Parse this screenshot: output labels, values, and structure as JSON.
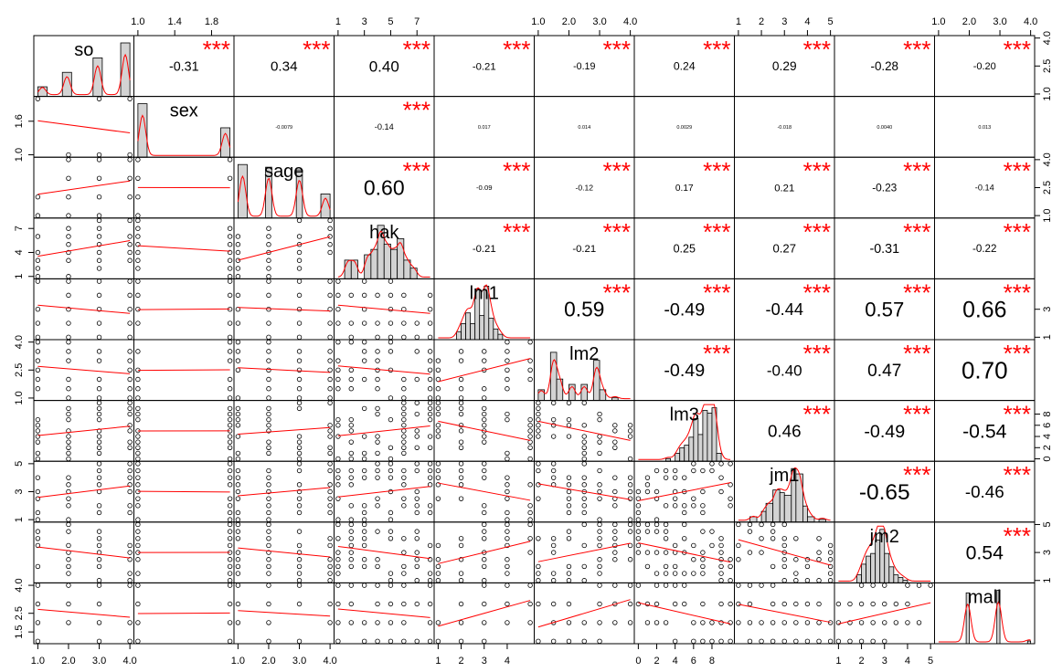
{
  "chart_data": {
    "type": "scatter",
    "variables": [
      "so",
      "sex",
      "sage",
      "hak",
      "lm1",
      "lm2",
      "lm3",
      "jm1",
      "jm2",
      "mall"
    ],
    "ranges": [
      [
        1,
        4
      ],
      [
        1,
        2
      ],
      [
        1,
        4
      ],
      [
        1,
        8
      ],
      [
        1,
        5
      ],
      [
        1,
        4
      ],
      [
        0,
        10
      ],
      [
        1,
        5
      ],
      [
        1,
        5
      ],
      [
        1,
        4
      ]
    ],
    "axis_ticks": {
      "top": [
        [
          1.0,
          1.4,
          1.8
        ],
        [
          1,
          3,
          5,
          7
        ],
        [
          1.0,
          2.0,
          3.0,
          4.0
        ],
        [
          1,
          2,
          3,
          4,
          5
        ],
        [
          1.0,
          2.0,
          3.0,
          4.0
        ]
      ],
      "top_labels": [
        [
          "1.0",
          "1.4",
          "1.8"
        ],
        [
          "1",
          "3",
          "5",
          "7"
        ],
        [
          "1.0",
          "2.0",
          "3.0",
          "4.0"
        ],
        [
          "1",
          "2",
          "3",
          "4",
          "5"
        ],
        [
          "1.0",
          "2.0",
          "3.0",
          "4.0"
        ]
      ],
      "bottom": [
        [
          1.0,
          2.0,
          3.0,
          4.0
        ],
        [
          1.0,
          2.0,
          3.0,
          4.0
        ],
        [
          1,
          2,
          3,
          4
        ],
        [
          0,
          2,
          4,
          6,
          8
        ],
        [
          1,
          2,
          3,
          4,
          5
        ]
      ],
      "bottom_labels": [
        [
          "1.0",
          "2.0",
          "3.0",
          "4.0"
        ],
        [
          "1.0",
          "2.0",
          "3.0",
          "4.0"
        ],
        [
          "1",
          "2",
          "3",
          "4"
        ],
        [
          "0",
          "2",
          "4",
          "6",
          "8"
        ],
        [
          "1",
          "2",
          "3",
          "4",
          "5"
        ]
      ],
      "left": [
        [
          1.6,
          1.0
        ],
        [
          7,
          4,
          1
        ],
        [
          4.0,
          2.5,
          1.0
        ],
        [
          5,
          3,
          1
        ],
        [
          4.0,
          2.5,
          1.5
        ]
      ],
      "left_labels": [
        [
          "1.6",
          "1.0"
        ],
        [
          "7",
          "4",
          "1"
        ],
        [
          "4.0",
          "2.5",
          "1.0"
        ],
        [
          "5",
          "3",
          "1"
        ],
        [
          "4.0",
          "2.5",
          "1.5"
        ]
      ],
      "right": [
        [
          4.0,
          2.5,
          1.0
        ],
        [
          4.0,
          2.5,
          1.0
        ],
        [
          3,
          1
        ],
        [
          8,
          6,
          4,
          2,
          0
        ],
        [
          5,
          3,
          1
        ]
      ],
      "right_labels": [
        [
          "4.0",
          "2.5",
          "1.0"
        ],
        [
          "4.0",
          "2.5",
          "1.0"
        ],
        [
          "3",
          "1"
        ],
        [
          "8",
          "6",
          "4",
          "2",
          "0"
        ],
        [
          "5",
          "3",
          "1"
        ]
      ]
    },
    "correlations": [
      {
        "r": 0,
        "c": 1,
        "text": "-0.31",
        "stars": "***"
      },
      {
        "r": 0,
        "c": 2,
        "text": "0.34",
        "stars": "***"
      },
      {
        "r": 0,
        "c": 3,
        "text": "0.40",
        "stars": "***"
      },
      {
        "r": 0,
        "c": 4,
        "text": "-0.21",
        "stars": "***"
      },
      {
        "r": 0,
        "c": 5,
        "text": "-0.19",
        "stars": "***"
      },
      {
        "r": 0,
        "c": 6,
        "text": "0.24",
        "stars": "***"
      },
      {
        "r": 0,
        "c": 7,
        "text": "0.29",
        "stars": "***"
      },
      {
        "r": 0,
        "c": 8,
        "text": "-0.28",
        "stars": "***"
      },
      {
        "r": 0,
        "c": 9,
        "text": "-0.20",
        "stars": "***"
      },
      {
        "r": 1,
        "c": 2,
        "text": "-0.0079",
        "stars": ""
      },
      {
        "r": 1,
        "c": 3,
        "text": "-0.14",
        "stars": "***"
      },
      {
        "r": 1,
        "c": 4,
        "text": "0.017",
        "stars": ""
      },
      {
        "r": 1,
        "c": 5,
        "text": "0.014",
        "stars": ""
      },
      {
        "r": 1,
        "c": 6,
        "text": "0.0029",
        "stars": ""
      },
      {
        "r": 1,
        "c": 7,
        "text": "-0.018",
        "stars": ""
      },
      {
        "r": 1,
        "c": 8,
        "text": "0.0040",
        "stars": ""
      },
      {
        "r": 1,
        "c": 9,
        "text": "0.013",
        "stars": ""
      },
      {
        "r": 2,
        "c": 3,
        "text": "0.60",
        "stars": "***"
      },
      {
        "r": 2,
        "c": 4,
        "text": "-0.09",
        "stars": "***"
      },
      {
        "r": 2,
        "c": 5,
        "text": "-0.12",
        "stars": "***"
      },
      {
        "r": 2,
        "c": 6,
        "text": "0.17",
        "stars": "***"
      },
      {
        "r": 2,
        "c": 7,
        "text": "0.21",
        "stars": "***"
      },
      {
        "r": 2,
        "c": 8,
        "text": "-0.23",
        "stars": "***"
      },
      {
        "r": 2,
        "c": 9,
        "text": "-0.14",
        "stars": "***"
      },
      {
        "r": 3,
        "c": 4,
        "text": "-0.21",
        "stars": "***"
      },
      {
        "r": 3,
        "c": 5,
        "text": "-0.21",
        "stars": "***"
      },
      {
        "r": 3,
        "c": 6,
        "text": "0.25",
        "stars": "***"
      },
      {
        "r": 3,
        "c": 7,
        "text": "0.27",
        "stars": "***"
      },
      {
        "r": 3,
        "c": 8,
        "text": "-0.31",
        "stars": "***"
      },
      {
        "r": 3,
        "c": 9,
        "text": "-0.22",
        "stars": "***"
      },
      {
        "r": 4,
        "c": 5,
        "text": "0.59",
        "stars": "***"
      },
      {
        "r": 4,
        "c": 6,
        "text": "-0.49",
        "stars": "***"
      },
      {
        "r": 4,
        "c": 7,
        "text": "-0.44",
        "stars": "***"
      },
      {
        "r": 4,
        "c": 8,
        "text": "0.57",
        "stars": "***"
      },
      {
        "r": 4,
        "c": 9,
        "text": "0.66",
        "stars": "***"
      },
      {
        "r": 5,
        "c": 6,
        "text": "-0.49",
        "stars": "***"
      },
      {
        "r": 5,
        "c": 7,
        "text": "-0.40",
        "stars": "***"
      },
      {
        "r": 5,
        "c": 8,
        "text": "0.47",
        "stars": "***"
      },
      {
        "r": 5,
        "c": 9,
        "text": "0.70",
        "stars": "***"
      },
      {
        "r": 6,
        "c": 7,
        "text": "0.46",
        "stars": "***"
      },
      {
        "r": 6,
        "c": 8,
        "text": "-0.49",
        "stars": "***"
      },
      {
        "r": 6,
        "c": 9,
        "text": "-0.54",
        "stars": "***"
      },
      {
        "r": 7,
        "c": 8,
        "text": "-0.65",
        "stars": "***"
      },
      {
        "r": 7,
        "c": 9,
        "text": "-0.46",
        "stars": "***"
      },
      {
        "r": 8,
        "c": 9,
        "text": "0.54",
        "stars": "***"
      }
    ],
    "histograms": [
      {
        "var": "so",
        "bins": [
          [
            1,
            1.3,
            0.18
          ],
          [
            1.8,
            2.1,
            0.45
          ],
          [
            2.8,
            3.1,
            0.72
          ],
          [
            3.7,
            4,
            1.0
          ]
        ]
      },
      {
        "var": "sex",
        "bins": [
          [
            1,
            1.1,
            1.0
          ],
          [
            1.9,
            2,
            0.55
          ]
        ]
      },
      {
        "var": "sage",
        "bins": [
          [
            1,
            1.3,
            1.0
          ],
          [
            1.9,
            2.1,
            0.95
          ],
          [
            2.9,
            3.1,
            0.9
          ],
          [
            3.7,
            4,
            0.45
          ]
        ]
      },
      {
        "var": "hak",
        "bins": [
          [
            1.5,
            2,
            0.35
          ],
          [
            2,
            2.5,
            0.35
          ],
          [
            3,
            3.5,
            0.45
          ],
          [
            3.5,
            4,
            0.55
          ],
          [
            4,
            4.5,
            1.0
          ],
          [
            4.5,
            5,
            0.65
          ],
          [
            5,
            5.5,
            0.55
          ],
          [
            5.5,
            6,
            0.75
          ],
          [
            6,
            6.5,
            0.35
          ],
          [
            6.5,
            7,
            0.2
          ]
        ]
      },
      {
        "var": "lm1",
        "bins": [
          [
            1.8,
            2,
            0.15
          ],
          [
            2,
            2.2,
            0.3
          ],
          [
            2.2,
            2.4,
            0.5
          ],
          [
            2.4,
            2.6,
            0.3
          ],
          [
            2.6,
            2.8,
            0.95
          ],
          [
            2.8,
            3,
            0.45
          ],
          [
            3,
            3.2,
            1.0
          ],
          [
            3.2,
            3.4,
            0.4
          ],
          [
            3.4,
            3.6,
            0.2
          ],
          [
            3.6,
            3.8,
            0.1
          ]
        ]
      },
      {
        "var": "lm2",
        "bins": [
          [
            1,
            1.2,
            0.2
          ],
          [
            1.4,
            1.6,
            0.9
          ],
          [
            1.6,
            1.8,
            0.4
          ],
          [
            2,
            2.2,
            0.3
          ],
          [
            2.4,
            2.6,
            0.3
          ],
          [
            2.8,
            3,
            0.75
          ],
          [
            3,
            3.2,
            0.2
          ],
          [
            3.4,
            3.6,
            0.05
          ]
        ]
      },
      {
        "var": "lm3",
        "bins": [
          [
            3,
            3.5,
            0.05
          ],
          [
            4,
            4.5,
            0.15
          ],
          [
            4.5,
            5,
            0.25
          ],
          [
            5,
            5.5,
            0.3
          ],
          [
            5.5,
            6,
            0.45
          ],
          [
            6,
            6.5,
            0.8
          ],
          [
            6.5,
            7,
            0.5
          ],
          [
            7,
            7.5,
            0.95
          ],
          [
            7.5,
            8,
            0.9
          ],
          [
            8,
            8.5,
            1.0
          ],
          [
            8.5,
            9,
            0.15
          ]
        ]
      },
      {
        "var": "jm1",
        "bins": [
          [
            1.5,
            1.8,
            0.1
          ],
          [
            2,
            2.2,
            0.2
          ],
          [
            2.2,
            2.5,
            0.35
          ],
          [
            2.5,
            2.8,
            0.6
          ],
          [
            2.8,
            3,
            0.55
          ],
          [
            3,
            3.3,
            0.5
          ],
          [
            3.3,
            3.5,
            1.0
          ],
          [
            3.5,
            3.8,
            0.9
          ],
          [
            3.8,
            4,
            0.3
          ],
          [
            4,
            4.3,
            0.1
          ],
          [
            4.5,
            4.8,
            0.05
          ]
        ]
      },
      {
        "var": "jm2",
        "bins": [
          [
            1.8,
            2,
            0.15
          ],
          [
            2,
            2.2,
            0.35
          ],
          [
            2.2,
            2.4,
            0.5
          ],
          [
            2.4,
            2.6,
            0.55
          ],
          [
            2.6,
            2.8,
            0.8
          ],
          [
            2.8,
            3,
            1.0
          ],
          [
            3,
            3.2,
            0.55
          ],
          [
            3.2,
            3.4,
            0.3
          ],
          [
            3.4,
            3.6,
            0.15
          ],
          [
            3.6,
            3.8,
            0.1
          ],
          [
            3.8,
            4,
            0.05
          ]
        ]
      },
      {
        "var": "mall",
        "bins": [
          [
            1.9,
            2,
            0.95
          ],
          [
            2.9,
            3,
            1.0
          ],
          [
            3.9,
            4,
            0.05
          ]
        ]
      }
    ],
    "xlabel": "",
    "ylabel": "",
    "grid": false,
    "legend": "none"
  }
}
